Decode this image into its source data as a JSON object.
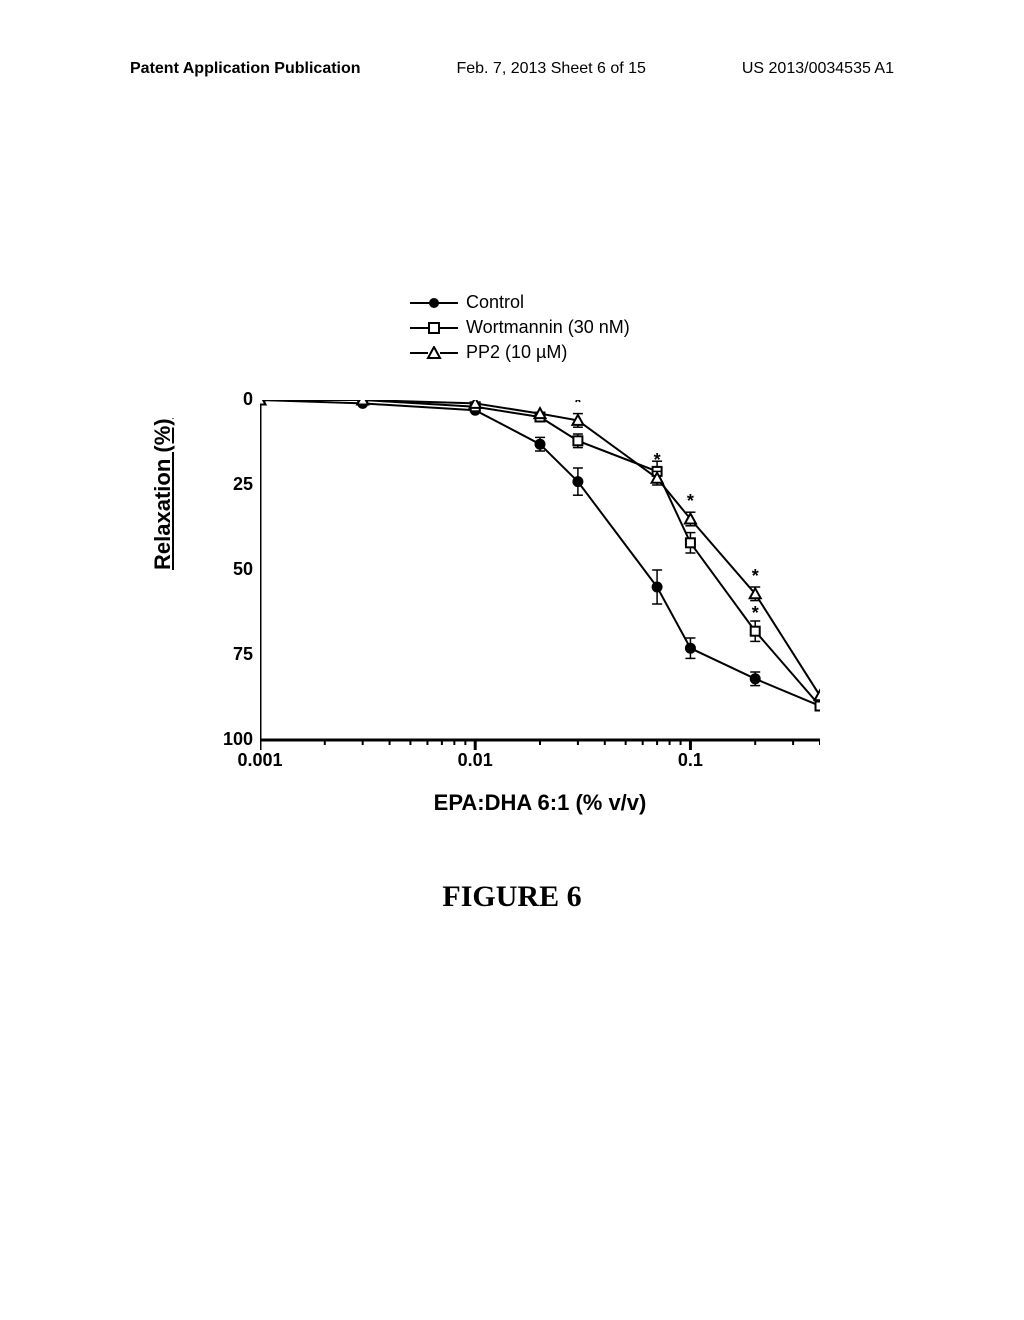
{
  "header": {
    "left": "Patent Application Publication",
    "mid": "Feb. 7, 2013  Sheet 6 of 15",
    "right": "US 2013/0034535 A1"
  },
  "legend": {
    "items": [
      {
        "label": "Control",
        "marker": "filled-circle"
      },
      {
        "label": "Wortmannin (30 nM)",
        "marker": "open-square"
      },
      {
        "label": "PP2 (10 µM)",
        "marker": "open-triangle"
      }
    ]
  },
  "axes": {
    "ylabel": "Relaxation (%)",
    "xlabel": "EPA:DHA 6:1 (% v/v)",
    "ylim": [
      100,
      0
    ],
    "yticks": [
      0,
      25,
      50,
      75,
      100
    ],
    "xscale": "log",
    "xlim": [
      0.001,
      0.4
    ],
    "xticks": [
      0.001,
      0.01,
      0.1
    ],
    "axis_color": "#000000",
    "axis_width": 3,
    "tick_fontsize": 18,
    "label_fontsize": 22
  },
  "series": {
    "control": {
      "marker": "filled-circle",
      "color": "#000000",
      "x": [
        0.001,
        0.003,
        0.01,
        0.02,
        0.03,
        0.07,
        0.1,
        0.2,
        0.4
      ],
      "y": [
        0,
        1,
        3,
        13,
        24,
        55,
        73,
        82,
        90
      ],
      "err": [
        0,
        0,
        0,
        2,
        4,
        5,
        3,
        2,
        0
      ]
    },
    "wortmannin": {
      "marker": "open-square",
      "color": "#000000",
      "x": [
        0.001,
        0.003,
        0.01,
        0.02,
        0.03,
        0.07,
        0.1,
        0.2,
        0.4
      ],
      "y": [
        0,
        0,
        2,
        5,
        12,
        21,
        42,
        68,
        90
      ],
      "err": [
        0,
        0,
        0,
        0,
        2,
        3,
        3,
        3,
        0
      ],
      "sig": [
        false,
        false,
        false,
        false,
        false,
        false,
        false,
        true,
        false
      ]
    },
    "pp2": {
      "marker": "open-triangle",
      "color": "#000000",
      "x": [
        0.001,
        0.003,
        0.01,
        0.02,
        0.03,
        0.07,
        0.1,
        0.2,
        0.4
      ],
      "y": [
        0,
        0,
        1,
        4,
        6,
        23,
        35,
        57,
        87
      ],
      "err": [
        0,
        0,
        0,
        0,
        2,
        2,
        2,
        2,
        0
      ],
      "sig": [
        false,
        false,
        false,
        false,
        true,
        true,
        true,
        true,
        false
      ]
    }
  },
  "styling": {
    "background_color": "#ffffff",
    "line_color": "#000000",
    "line_width": 2,
    "marker_size": 9,
    "errorbar_cap": 5,
    "sig_symbol": "*"
  },
  "figure_caption": "FIGURE 6"
}
